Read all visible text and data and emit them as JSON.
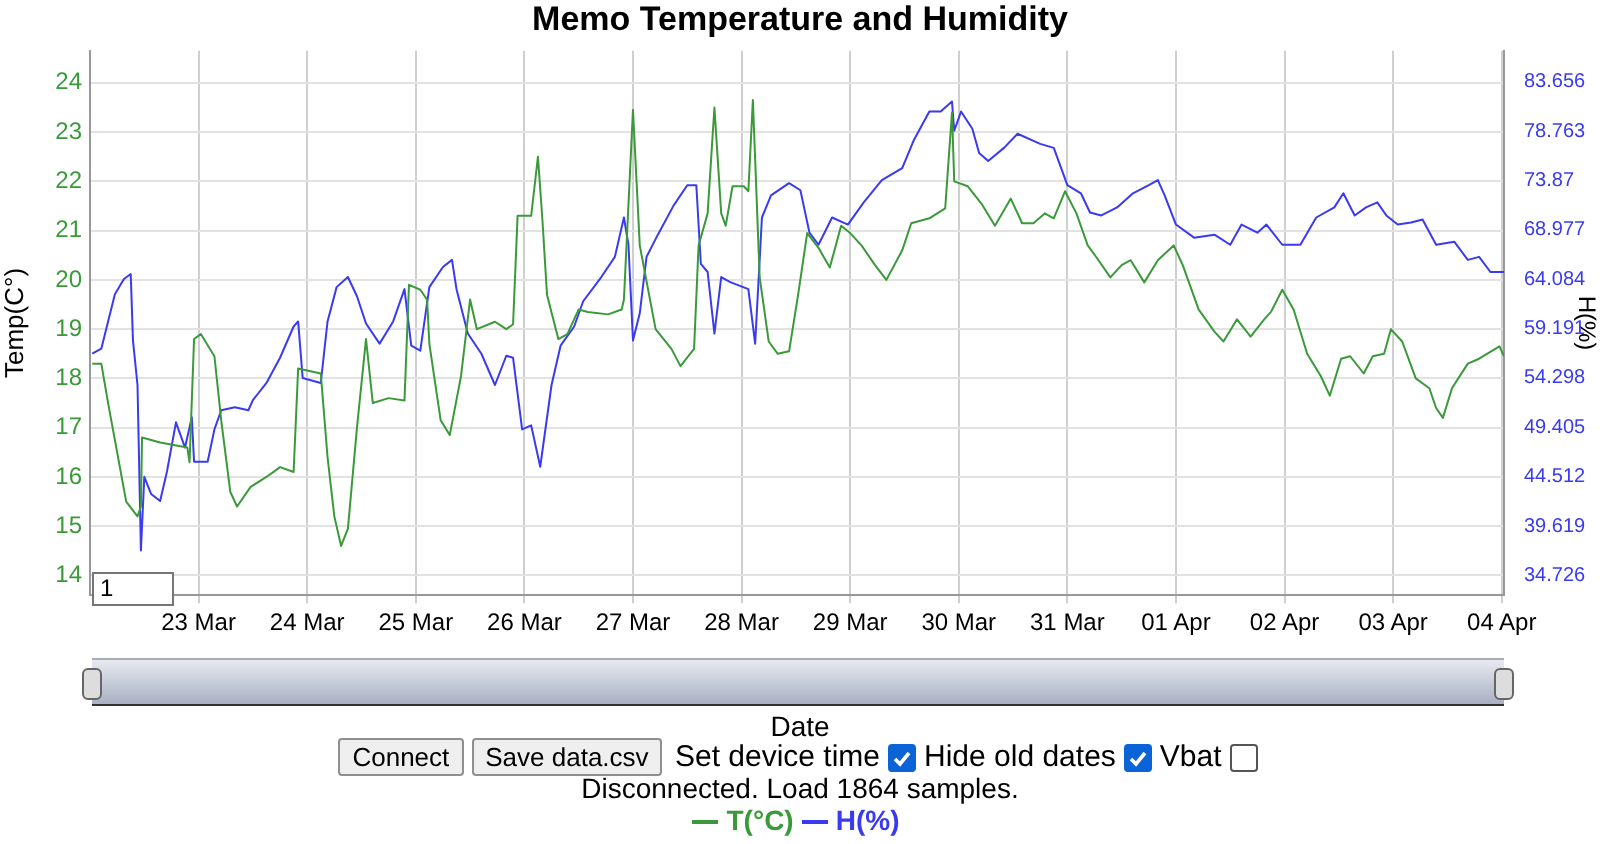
{
  "chart_data": {
    "type": "line",
    "title": "Memo Temperature and Humidity",
    "xlabel": "Date",
    "ylabel": "Temp(C°)",
    "y2label": "H(%)",
    "xlim": [
      "--03-22T00:00",
      "--04-04T00:30"
    ],
    "xticks": [
      {
        "value": "--03-23",
        "label": "23 Mar"
      },
      {
        "value": "--03-24",
        "label": "24 Mar"
      },
      {
        "value": "--03-25",
        "label": "25 Mar"
      },
      {
        "value": "--03-26",
        "label": "26 Mar"
      },
      {
        "value": "--03-27",
        "label": "27 Mar"
      },
      {
        "value": "--03-28",
        "label": "28 Mar"
      },
      {
        "value": "--03-29",
        "label": "29 Mar"
      },
      {
        "value": "--03-30",
        "label": "30 Mar"
      },
      {
        "value": "--03-31",
        "label": "31 Mar"
      },
      {
        "value": "--04-01",
        "label": "01 Apr"
      },
      {
        "value": "--04-02",
        "label": "02 Apr"
      },
      {
        "value": "--04-03",
        "label": "03 Apr"
      },
      {
        "value": "--04-04",
        "label": "04 Apr"
      }
    ],
    "ylim": [
      13.6,
      24.65
    ],
    "yticks": [
      14,
      15,
      16,
      17,
      18,
      19,
      20,
      21,
      22,
      23,
      24
    ],
    "y2lim": [
      32.77,
      86.72
    ],
    "y2ticks": [
      34.726,
      39.619,
      44.512,
      49.405,
      54.298,
      59.191,
      64.084,
      68.977,
      73.87,
      78.763,
      83.656
    ],
    "grid": true,
    "legend": "bottom",
    "marker": "none",
    "line_style": "solid",
    "annotations": [
      "1",
      "Connect",
      "Save data.csv",
      "Set device time",
      "Hide old dates",
      "Vbat",
      "Disconnected. Load 1864 samples."
    ],
    "series": [
      {
        "name": "T(°C)",
        "color": "#3a9a3a",
        "x": [
          "--03-22T00:30",
          "--03-22T02:30",
          "--03-22T04:00",
          "--03-22T06:00",
          "--03-22T08:00",
          "--03-22T10:30",
          "--03-22T11:15",
          "--03-22T11:30",
          "--03-22T15:30",
          "--03-22T21:30",
          "--03-22T22:00",
          "--03-22T23:00",
          "--03-23T00:30",
          "--03-23T03:30",
          "--03-23T05:00",
          "--03-23T07:00",
          "--03-23T08:30",
          "--03-23T11:30",
          "--03-23T15:00",
          "--03-23T18:00",
          "--03-23T21:00",
          "--03-23T22:00",
          "--03-24T03:00",
          "--03-24T04:30",
          "--03-24T06:00",
          "--03-24T07:30",
          "--03-24T09:00",
          "--03-24T11:00",
          "--03-24T13:00",
          "--03-24T14:30",
          "--03-24T18:00",
          "--03-24T21:30",
          "--03-24T22:30",
          "--03-25T01:00",
          "--03-25T02:30",
          "--03-25T03:00",
          "--03-25T05:30",
          "--03-25T07:30",
          "--03-25T10:00",
          "--03-25T12:00",
          "--03-25T13:30",
          "--03-25T17:30",
          "--03-25T20:00",
          "--03-25T21:30",
          "--03-25T22:30",
          "--03-26T01:30",
          "--03-26T03:00",
          "--03-26T04:00",
          "--03-26T05:00",
          "--03-26T07:30",
          "--03-26T09:30",
          "--03-26T12:00",
          "--03-26T14:00",
          "--03-26T18:30",
          "--03-26T21:30",
          "--03-26T22:00",
          "--03-27T00:00",
          "--03-27T01:30",
          "--03-27T05:00",
          "--03-27T08:30",
          "--03-27T10:30",
          "--03-27T13:30",
          "--03-27T14:30",
          "--03-27T16:30",
          "--03-27T18:00",
          "--03-27T19:30",
          "--03-27T20:30",
          "--03-27T22:00",
          "--03-28T00:30",
          "--03-28T01:30",
          "--03-28T02:30",
          "--03-28T04:00",
          "--03-28T06:00",
          "--03-28T08:00",
          "--03-28T10:30",
          "--03-28T12:30",
          "--03-28T14:30",
          "--03-28T17:00",
          "--03-28T19:30",
          "--03-28T22:00",
          "--03-29T00:00",
          "--03-29T02:30",
          "--03-29T05:30",
          "--03-29T08:00",
          "--03-29T11:30",
          "--03-29T13:30",
          "--03-29T17:30",
          "--03-29T21:00",
          "--03-29T22:30",
          "--03-29T23:00",
          "--03-30T02:00",
          "--03-30T05:00",
          "--03-30T08:00",
          "--03-30T11:30",
          "--03-30T14:00",
          "--03-30T16:30",
          "--03-30T19:00",
          "--03-30T21:00",
          "--03-30T23:30",
          "--03-31T02:00",
          "--03-31T04:30",
          "--03-31T06:30",
          "--03-31T09:30",
          "--03-31T12:00",
          "--03-31T14:00",
          "--03-31T17:00",
          "--03-31T20:00",
          "--03-31T23:30",
          "--04-01T01:30",
          "--04-01T05:00",
          "--04-01T08:30",
          "--04-01T10:30",
          "--04-01T13:30",
          "--04-01T16:30",
          "--04-01T19:30",
          "--04-01T21:00",
          "--04-01T23:30",
          "--04-02T02:00",
          "--04-02T05:00",
          "--04-02T08:00",
          "--04-02T10:00",
          "--04-02T12:30",
          "--04-02T14:30",
          "--04-02T17:30",
          "--04-02T19:30",
          "--04-02T22:00",
          "--04-02T23:30",
          "--04-03T02:00",
          "--04-03T05:00",
          "--04-03T08:00",
          "--04-03T09:30",
          "--04-03T11:00",
          "--04-03T13:00",
          "--04-03T16:30",
          "--04-03T19:00",
          "--04-03T23:30",
          "--04-04T00:30"
        ],
        "values": [
          18.3,
          18.3,
          17.5,
          16.5,
          15.5,
          15.2,
          15.4,
          16.8,
          16.7,
          16.6,
          16.3,
          18.8,
          18.9,
          18.45,
          17.15,
          15.7,
          15.4,
          15.8,
          16.0,
          16.2,
          16.1,
          18.2,
          18.1,
          16.4,
          15.2,
          14.6,
          14.95,
          17.0,
          18.8,
          17.5,
          17.6,
          17.55,
          19.9,
          19.8,
          19.6,
          18.7,
          17.15,
          16.85,
          18.05,
          19.6,
          19.0,
          19.15,
          19.0,
          19.1,
          21.3,
          21.3,
          22.5,
          21.2,
          19.7,
          18.8,
          18.9,
          19.4,
          19.35,
          19.3,
          19.4,
          19.6,
          23.45,
          20.7,
          19.0,
          18.6,
          18.25,
          18.6,
          20.7,
          21.35,
          23.5,
          21.35,
          21.1,
          21.9,
          21.9,
          21.8,
          23.65,
          20.05,
          18.75,
          18.5,
          18.55,
          19.7,
          20.95,
          20.65,
          20.25,
          21.1,
          20.95,
          20.7,
          20.3,
          20.0,
          20.6,
          21.15,
          21.25,
          21.45,
          23.4,
          22.0,
          21.9,
          21.55,
          21.1,
          21.65,
          21.15,
          21.15,
          21.35,
          21.25,
          21.8,
          21.35,
          20.7,
          20.45,
          20.05,
          20.3,
          20.4,
          19.95,
          20.4,
          20.7,
          20.3,
          19.4,
          18.95,
          18.75,
          19.2,
          18.85,
          19.2,
          19.35,
          19.8,
          19.4,
          18.5,
          18.05,
          17.65,
          18.4,
          18.45,
          18.1,
          18.45,
          18.5,
          19.0,
          18.75,
          18.0,
          17.8,
          17.4,
          17.2,
          17.8,
          18.3,
          18.4,
          18.65,
          18.45
        ]
      },
      {
        "name": "H(%)",
        "color": "#3a3af0",
        "axis": "y2",
        "x": [
          "--03-22T00:30",
          "--03-22T02:30",
          "--03-22T04:00",
          "--03-22T05:30",
          "--03-22T07:30",
          "--03-22T09:00",
          "--03-22T09:30",
          "--03-22T10:30",
          "--03-22T11:15",
          "--03-22T12:00",
          "--03-22T13:30",
          "--03-22T15:30",
          "--03-22T17:00",
          "--03-22T19:00",
          "--03-22T21:00",
          "--03-22T22:30",
          "--03-22T23:00",
          "--03-23T02:00",
          "--03-23T03:30",
          "--03-23T05:00",
          "--03-23T08:00",
          "--03-23T11:00",
          "--03-23T12:00",
          "--03-23T15:00",
          "--03-23T18:00",
          "--03-23T21:00",
          "--03-23T22:00",
          "--03-23T23:00",
          "--03-24T03:00",
          "--03-24T04:30",
          "--03-24T06:30",
          "--03-24T09:00",
          "--03-24T11:00",
          "--03-24T13:00",
          "--03-24T16:00",
          "--03-24T19:00",
          "--03-24T21:30",
          "--03-24T23:00",
          "--03-25T01:00",
          "--03-25T03:00",
          "--03-25T06:00",
          "--03-25T08:00",
          "--03-25T09:00",
          "--03-25T11:30",
          "--03-25T14:30",
          "--03-25T17:30",
          "--03-25T20:00",
          "--03-25T21:30",
          "--03-25T23:30",
          "--03-26T01:30",
          "--03-26T03:30",
          "--03-26T06:00",
          "--03-26T08:00",
          "--03-26T11:00",
          "--03-26T13:00",
          "--03-26T17:00",
          "--03-26T20:00",
          "--03-26T22:00",
          "--03-26T23:00",
          "--03-27T00:00",
          "--03-27T01:30",
          "--03-27T03:00",
          "--03-27T05:30",
          "--03-27T09:00",
          "--03-27T12:00",
          "--03-27T14:00",
          "--03-27T15:00",
          "--03-27T16:30",
          "--03-27T18:00",
          "--03-27T19:30",
          "--03-27T21:30",
          "--03-28T01:30",
          "--03-28T03:00",
          "--03-28T04:30",
          "--03-28T06:30",
          "--03-28T10:30",
          "--03-28T13:00",
          "--03-28T15:00",
          "--03-28T17:00",
          "--03-28T20:00",
          "--03-28T23:30",
          "--03-29T03:00",
          "--03-29T07:00",
          "--03-29T11:30",
          "--03-29T14:00",
          "--03-29T17:30",
          "--03-29T20:00",
          "--03-29T22:30",
          "--03-29T23:00",
          "--03-30T00:30",
          "--03-30T03:00",
          "--03-30T04:30",
          "--03-30T06:30",
          "--03-30T10:00",
          "--03-30T13:00",
          "--03-30T18:00",
          "--03-30T21:00",
          "--03-31T00:00",
          "--03-31T03:00",
          "--03-31T05:00",
          "--03-31T07:30",
          "--03-31T11:00",
          "--03-31T14:30",
          "--03-31T18:00",
          "--03-31T20:00",
          "--03-31T21:30",
          "--04-01T00:00",
          "--04-01T04:00",
          "--04-01T08:30",
          "--04-01T12:00",
          "--04-01T14:30",
          "--04-01T18:00",
          "--04-01T20:00",
          "--04-01T23:30",
          "--04-02T03:30",
          "--04-02T07:00",
          "--04-02T11:00",
          "--04-02T13:00",
          "--04-02T15:30",
          "--04-02T18:00",
          "--04-02T20:30",
          "--04-02T22:30",
          "--04-03T01:00",
          "--04-03T04:00",
          "--04-03T06:30",
          "--04-03T09:30",
          "--04-03T13:30",
          "--04-03T16:30",
          "--04-03T19:00",
          "--04-03T21:30",
          "--04-04T00:30"
        ],
        "values": [
          56.7,
          57.2,
          59.9,
          62.6,
          64.1,
          64.6,
          58.0,
          53.6,
          37.2,
          44.5,
          42.8,
          42.1,
          45.0,
          49.9,
          47.4,
          50.4,
          46.0,
          46.0,
          49.2,
          51.1,
          51.4,
          51.1,
          52.1,
          53.8,
          56.3,
          59.4,
          59.9,
          54.3,
          53.8,
          59.9,
          63.3,
          64.3,
          62.4,
          59.7,
          57.7,
          59.9,
          63.1,
          57.5,
          57.0,
          63.3,
          65.3,
          66.0,
          63.1,
          58.7,
          56.7,
          53.6,
          56.5,
          56.3,
          49.2,
          49.6,
          45.5,
          53.6,
          57.5,
          59.4,
          61.9,
          64.3,
          66.3,
          70.2,
          67.5,
          58.0,
          60.7,
          66.3,
          68.5,
          71.4,
          73.4,
          73.4,
          65.6,
          64.8,
          58.7,
          64.3,
          63.8,
          63.1,
          57.7,
          70.2,
          72.4,
          73.6,
          72.9,
          68.7,
          67.5,
          70.2,
          69.5,
          71.7,
          73.9,
          75.1,
          77.8,
          80.7,
          80.7,
          81.7,
          78.8,
          80.7,
          79.0,
          76.6,
          75.8,
          77.1,
          78.5,
          77.5,
          77.1,
          73.4,
          72.6,
          70.7,
          70.4,
          71.2,
          72.6,
          73.4,
          73.9,
          72.4,
          69.5,
          68.2,
          68.5,
          67.5,
          69.5,
          68.7,
          69.5,
          67.5,
          67.5,
          70.2,
          71.2,
          72.6,
          70.4,
          71.2,
          71.7,
          70.4,
          69.5,
          69.7,
          70.0,
          67.5,
          67.8,
          66.0,
          66.3,
          64.8,
          64.8
        ]
      }
    ]
  }
}
